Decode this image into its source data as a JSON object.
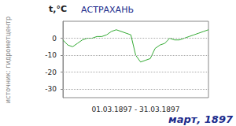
{
  "chart_data": {
    "type": "line",
    "title": "АСТРАХАНЬ",
    "ylabel": "t,°C",
    "xlabel": "01.03.1897 - 31.03.1897",
    "annotations": [
      "источник: гидрометцентр",
      "март, 1897"
    ],
    "categories": [
      null,
      null,
      null,
      null,
      null,
      null,
      null,
      null,
      null,
      null,
      null,
      null,
      null,
      null,
      null,
      null,
      null,
      null,
      null,
      null,
      null,
      null,
      null,
      null,
      null,
      null,
      null,
      null,
      null,
      null,
      null
    ],
    "values": [
      -1,
      -4,
      -5,
      -3,
      -1,
      0,
      0,
      1,
      1,
      2,
      4,
      5,
      4,
      3,
      2,
      -10,
      -14,
      -13,
      -12,
      -6,
      -4,
      -3,
      0,
      -1,
      -1,
      0,
      1,
      2,
      3,
      4,
      5
    ],
    "color": "#33aa33",
    "ylim": [
      -35,
      10
    ],
    "yticks": [
      -30,
      -20,
      -10,
      0
    ],
    "grid": true,
    "tick_labels": "y"
  }
}
